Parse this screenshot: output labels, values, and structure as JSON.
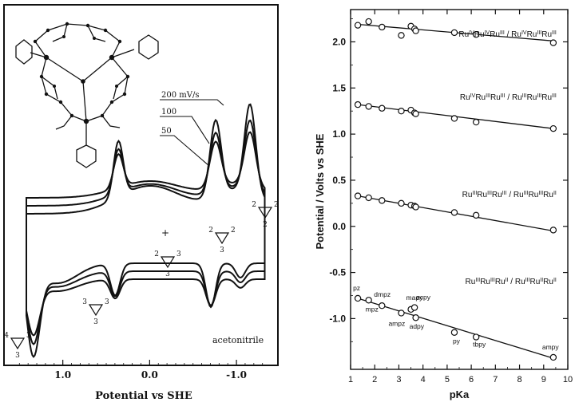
{
  "chart_data": [
    {
      "type": "line",
      "title": "",
      "xlabel": "Potential  vs SHE",
      "ylabel": "",
      "xlim": [
        1.65,
        -1.45
      ],
      "x_ticks": [
        "1.0",
        "0.0",
        "-1.0"
      ],
      "x_tick_values": [
        1.0,
        0.0,
        -1.0
      ],
      "x_reversed": true,
      "grid": false,
      "scan_rates": [
        "200 mV/s",
        "100",
        "50"
      ],
      "solvent_label": "acetonitrile",
      "peak_potentials": [
        1.34,
        0.36,
        -0.76,
        -1.12
      ],
      "oxidation_state_labels": [
        {
          "top_left": "4",
          "top_right": "3",
          "bottom": "3",
          "near_potential": 1.3
        },
        {
          "top_left": "3",
          "top_right": "3",
          "bottom": "3",
          "near_potential": 0.85
        },
        {
          "top_left": "2",
          "top_right": "3",
          "bottom": "3",
          "near_potential": 0.1
        },
        {
          "top_left": "2",
          "top_right": "2",
          "bottom": "3",
          "near_potential": -0.8
        },
        {
          "top_left": "2",
          "top_right": "2",
          "bottom": "2",
          "near_potential": -1.35
        }
      ]
    },
    {
      "type": "scatter",
      "title": "",
      "xlabel": "pKa",
      "ylabel": "Potential / Volts vs SHE",
      "xlim": [
        1,
        10
      ],
      "ylim": [
        -1.55,
        2.35
      ],
      "x_ticks": [
        1,
        2,
        3,
        4,
        5,
        6,
        7,
        8,
        9,
        10
      ],
      "y_ticks": [
        -1.0,
        -0.5,
        0.0,
        0.5,
        1.0,
        1.5,
        2.0
      ],
      "y_tick_labels": [
        "-1.0",
        "-0.5",
        "0.0",
        "0.5",
        "1.0",
        "1.5",
        "2.0"
      ],
      "grid": false,
      "series": [
        {
          "name": "RuIVRuIVRuIII / RuIVRuIIIRuIII",
          "label_parts": [
            [
              "Ru",
              ""
            ],
            [
              "IV",
              "sup"
            ],
            [
              "Ru",
              ""
            ],
            [
              "IV",
              "sup"
            ],
            [
              "Ru",
              ""
            ],
            [
              "III",
              "sup"
            ],
            [
              " / Ru",
              ""
            ],
            [
              "IV",
              "sup"
            ],
            [
              "Ru",
              ""
            ],
            [
              "III",
              "sup"
            ],
            [
              "Ru",
              ""
            ],
            [
              "III",
              "sup"
            ]
          ],
          "x": [
            1.3,
            1.75,
            2.3,
            3.1,
            3.5,
            3.65,
            3.7,
            5.3,
            6.2,
            9.4
          ],
          "y": [
            2.18,
            2.22,
            2.16,
            2.07,
            2.17,
            2.14,
            2.12,
            2.1,
            2.08,
            1.99
          ],
          "fit": [
            [
              1.3,
              2.19
            ],
            [
              9.4,
              2.01
            ]
          ]
        },
        {
          "name": "RuIVRuIIIRuIII / RuIIIRuIIIRuIII",
          "label_parts": [
            [
              "Ru",
              ""
            ],
            [
              "IV",
              "sup"
            ],
            [
              "Ru",
              ""
            ],
            [
              "III",
              "sup"
            ],
            [
              "Ru",
              ""
            ],
            [
              "III",
              "sup"
            ],
            [
              " / Ru",
              ""
            ],
            [
              "III",
              "sup"
            ],
            [
              "Ru",
              ""
            ],
            [
              "III",
              "sup"
            ],
            [
              "Ru",
              ""
            ],
            [
              "III",
              "sup"
            ]
          ],
          "x": [
            1.3,
            1.75,
            2.3,
            3.1,
            3.5,
            3.65,
            3.7,
            5.3,
            6.2,
            9.4
          ],
          "y": [
            1.32,
            1.3,
            1.28,
            1.25,
            1.26,
            1.23,
            1.22,
            1.17,
            1.13,
            1.06
          ],
          "fit": [
            [
              1.3,
              1.32
            ],
            [
              9.4,
              1.06
            ]
          ]
        },
        {
          "name": "RuIIIRuIIIRuIII / RuIIIRuIIIRuII",
          "label_parts": [
            [
              "Ru",
              ""
            ],
            [
              "III",
              "sup"
            ],
            [
              "Ru",
              ""
            ],
            [
              "III",
              "sup"
            ],
            [
              "Ru",
              ""
            ],
            [
              "III",
              "sup"
            ],
            [
              " / Ru",
              ""
            ],
            [
              "III",
              "sup"
            ],
            [
              "Ru",
              ""
            ],
            [
              "III",
              "sup"
            ],
            [
              "Ru",
              ""
            ],
            [
              "II",
              "sup"
            ]
          ],
          "x": [
            1.3,
            1.75,
            2.3,
            3.1,
            3.5,
            3.65,
            3.7,
            5.3,
            6.2,
            9.4
          ],
          "y": [
            0.33,
            0.31,
            0.28,
            0.25,
            0.23,
            0.22,
            0.21,
            0.15,
            0.12,
            -0.04
          ],
          "fit": [
            [
              1.3,
              0.33
            ],
            [
              9.4,
              -0.05
            ]
          ]
        },
        {
          "name": "RuIIIRuIIIRuII / RuIIIRuIIRuII",
          "label_parts": [
            [
              "Ru",
              ""
            ],
            [
              "III",
              "sup"
            ],
            [
              "Ru",
              ""
            ],
            [
              "III",
              "sup"
            ],
            [
              "Ru",
              ""
            ],
            [
              "II",
              "sup"
            ],
            [
              " / Ru",
              ""
            ],
            [
              "III",
              "sup"
            ],
            [
              "Ru",
              ""
            ],
            [
              "II",
              "sup"
            ],
            [
              "Ru",
              ""
            ],
            [
              "II",
              "sup"
            ]
          ],
          "x": [
            1.3,
            1.75,
            2.3,
            3.1,
            3.5,
            3.65,
            3.7,
            5.3,
            6.2,
            9.4
          ],
          "y": [
            -0.78,
            -0.8,
            -0.86,
            -0.94,
            -0.9,
            -0.88,
            -0.99,
            -1.15,
            -1.2,
            -1.42
          ],
          "fit": [
            [
              1.3,
              -0.78
            ],
            [
              9.4,
              -1.43
            ]
          ],
          "point_labels": [
            "pz",
            "mpz",
            "dmpz",
            "ampz",
            "mapy",
            "acpy",
            "adpy",
            "py",
            "tbpy",
            "ampy"
          ]
        }
      ]
    }
  ]
}
